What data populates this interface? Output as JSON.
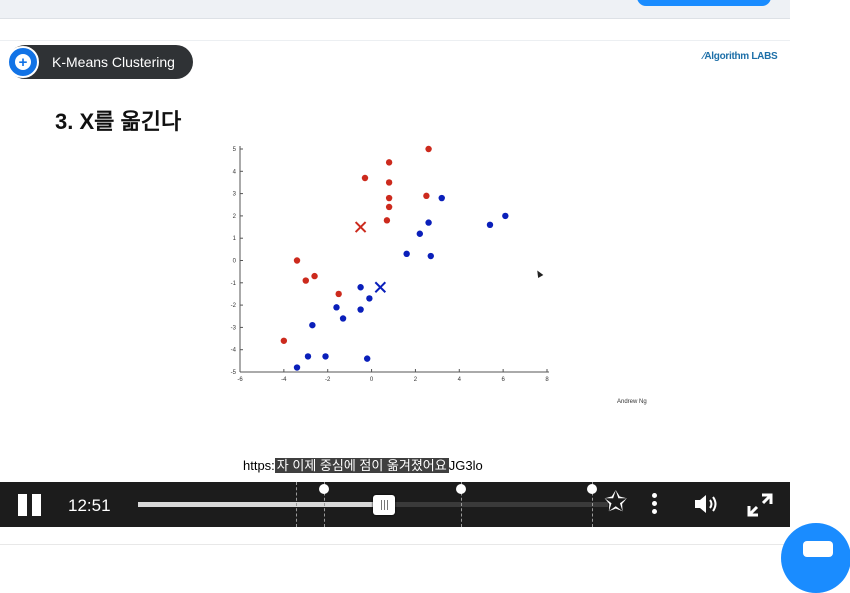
{
  "slide": {
    "badge_label": "K-Means Clustering",
    "logo_text": "Algorithm LABS",
    "heading": "3. X를 옮긴다",
    "credit": "Andrew Ng"
  },
  "caption": {
    "prefix": "https:",
    "subtitle": "자 이제 중심에 점이 옮겨졌어요",
    "suffix": "JG3lo"
  },
  "player": {
    "time": "12:51",
    "progress": 0.52,
    "buffered": 0.54
  },
  "colors": {
    "red": "#cc2a1d",
    "blue": "#0a1fba",
    "player_bg": "#1c1c1c",
    "accent": "#1a8cff"
  },
  "chart_data": {
    "type": "scatter",
    "xlim": [
      -6,
      8
    ],
    "ylim": [
      -5,
      5
    ],
    "xticks": [
      "-6",
      "-4",
      "-2",
      "0",
      "2",
      "4",
      "6",
      "8"
    ],
    "yticks": [
      "5",
      "4",
      "3",
      "2",
      "1",
      "0",
      "-1",
      "-2",
      "-3",
      "-4",
      "-5"
    ],
    "series": [
      {
        "color": "red",
        "points": [
          [
            2.6,
            5.0
          ],
          [
            0.8,
            4.4
          ],
          [
            -0.3,
            3.7
          ],
          [
            0.8,
            3.5
          ],
          [
            2.5,
            2.9
          ],
          [
            0.8,
            2.8
          ],
          [
            0.8,
            2.4
          ],
          [
            0.7,
            1.8
          ],
          [
            -3.4,
            0.0
          ],
          [
            -2.6,
            -0.7
          ],
          [
            -3.0,
            -0.9
          ],
          [
            -1.5,
            -1.5
          ],
          [
            -4.0,
            -3.6
          ]
        ]
      },
      {
        "color": "blue",
        "points": [
          [
            3.2,
            2.8
          ],
          [
            6.1,
            2.0
          ],
          [
            2.6,
            1.7
          ],
          [
            5.4,
            1.6
          ],
          [
            2.2,
            1.2
          ],
          [
            1.6,
            0.3
          ],
          [
            2.7,
            0.2
          ],
          [
            -0.5,
            -1.2
          ],
          [
            -0.1,
            -1.7
          ],
          [
            -1.6,
            -2.1
          ],
          [
            -0.5,
            -2.2
          ],
          [
            -1.3,
            -2.6
          ],
          [
            -2.7,
            -2.9
          ],
          [
            -2.9,
            -4.3
          ],
          [
            -2.1,
            -4.3
          ],
          [
            -0.2,
            -4.4
          ],
          [
            -3.4,
            -4.8
          ]
        ]
      }
    ],
    "centroids": [
      {
        "color": "red",
        "x": -0.5,
        "y": 1.5
      },
      {
        "color": "blue",
        "x": 0.4,
        "y": -1.2
      }
    ]
  },
  "timeline_markers": [
    0.336,
    0.395,
    0.687,
    0.965
  ]
}
